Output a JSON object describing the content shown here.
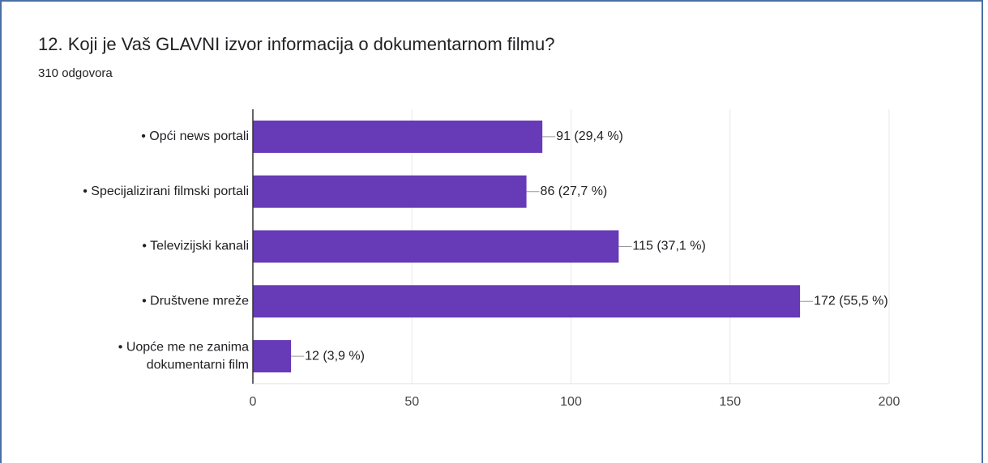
{
  "chart_data": {
    "type": "bar",
    "orientation": "horizontal",
    "title": "12. Koji je Vaš GLAVNI izvor informacija o dokumentarnom filmu?",
    "subtitle": "310 odgovora",
    "categories": [
      [
        "• Opći news portali"
      ],
      [
        "• Specijalizirani filmski portali"
      ],
      [
        "• Televizijski kanali"
      ],
      [
        "• Društvene mreže"
      ],
      [
        "• Uopće me ne zanima",
        "dokumentarni film"
      ]
    ],
    "values": [
      91,
      86,
      115,
      172,
      12
    ],
    "value_labels": [
      "91 (29,4 %)",
      "86 (27,7 %)",
      "115 (37,1 %)",
      "172 (55,5 %)",
      "12 (3,9 %)"
    ],
    "color": "#673ab7",
    "xlim": [
      0,
      200
    ],
    "xticks": [
      0,
      50,
      100,
      150,
      200
    ],
    "grid": true
  }
}
